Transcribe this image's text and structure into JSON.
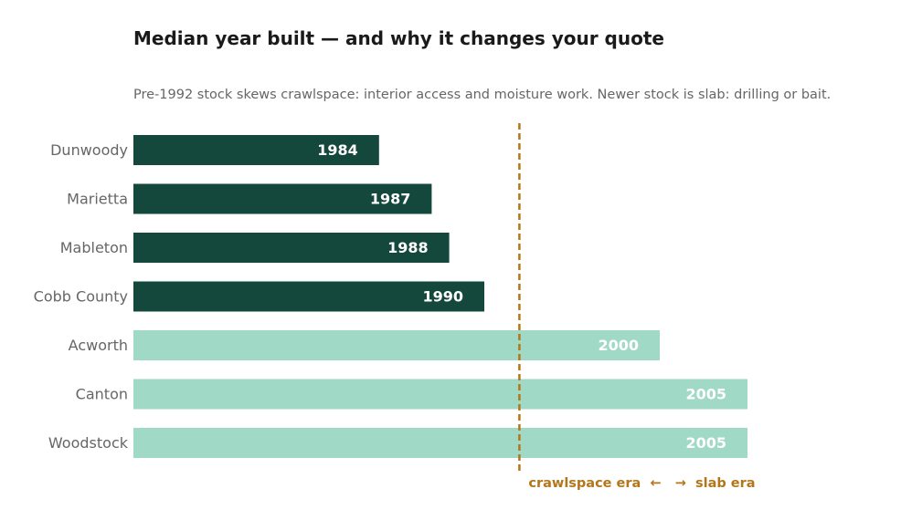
{
  "chart_data": {
    "type": "bar",
    "orientation": "horizontal",
    "title": "Median year built — and why it changes your quote",
    "subtitle": "Pre-1992 stock skews crawlspace: interior access and moisture work. Newer stock is slab: drilling or bait.",
    "categories": [
      "Dunwoody",
      "Marietta",
      "Mableton",
      "Cobb County",
      "Acworth",
      "Canton",
      "Woodstock"
    ],
    "values": [
      1984,
      1987,
      1988,
      1990,
      2000,
      2005,
      2005
    ],
    "value_labels": [
      "1984",
      "1987",
      "1988",
      "1990",
      "2000",
      "2005",
      "2005"
    ],
    "xlim": [
      1970,
      2010
    ],
    "grid": false,
    "threshold": {
      "value": 1992,
      "label": "crawlspace era  ←   →  slab era",
      "color": "#b5761a"
    },
    "colors": {
      "before_threshold": "#14483c",
      "after_threshold": "#a0d9c5"
    }
  }
}
